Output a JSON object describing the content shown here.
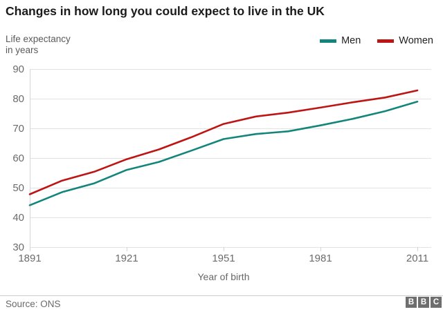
{
  "title": "Changes in how long you could expect to live in the UK",
  "y_axis_label_lines": [
    "Life expectancy",
    "in years"
  ],
  "legend": [
    {
      "label": "Men",
      "color": "#13857b"
    },
    {
      "label": "Women",
      "color": "#bd1414"
    }
  ],
  "footer": {
    "source": "Source: ONS",
    "logo_blocks": [
      "B",
      "B",
      "C"
    ]
  },
  "colors": {
    "men_line": "#13857b",
    "women_line": "#bd1414",
    "gridline": "#e2e2e2",
    "axis_line": "#d5d5d5",
    "tick_text": "#6b6b6b"
  },
  "chart_data": {
    "type": "line",
    "title": "Changes in how long you could expect to live in the UK",
    "xlabel": "Year of birth",
    "ylabel": "Life expectancy in years",
    "x": [
      1891,
      1901,
      1911,
      1921,
      1931,
      1941,
      1951,
      1961,
      1971,
      1981,
      1991,
      2001,
      2011
    ],
    "series": [
      {
        "name": "Men",
        "color": "#13857b",
        "values": [
          44.1,
          48.5,
          51.5,
          56.0,
          58.7,
          62.5,
          66.4,
          68.1,
          69.0,
          71.0,
          73.2,
          75.8,
          79.0
        ]
      },
      {
        "name": "Women",
        "color": "#bd1414",
        "values": [
          47.8,
          52.4,
          55.4,
          59.6,
          62.9,
          67.0,
          71.5,
          74.0,
          75.3,
          77.0,
          78.8,
          80.4,
          82.8
        ]
      }
    ],
    "xticks": [
      1891,
      1921,
      1951,
      1981,
      2011
    ],
    "yticks": [
      30,
      40,
      50,
      60,
      70,
      80,
      90
    ],
    "xlim": [
      1891,
      2011
    ],
    "ylim": [
      30,
      90
    ],
    "grid": true,
    "legend_position": "top-right"
  }
}
